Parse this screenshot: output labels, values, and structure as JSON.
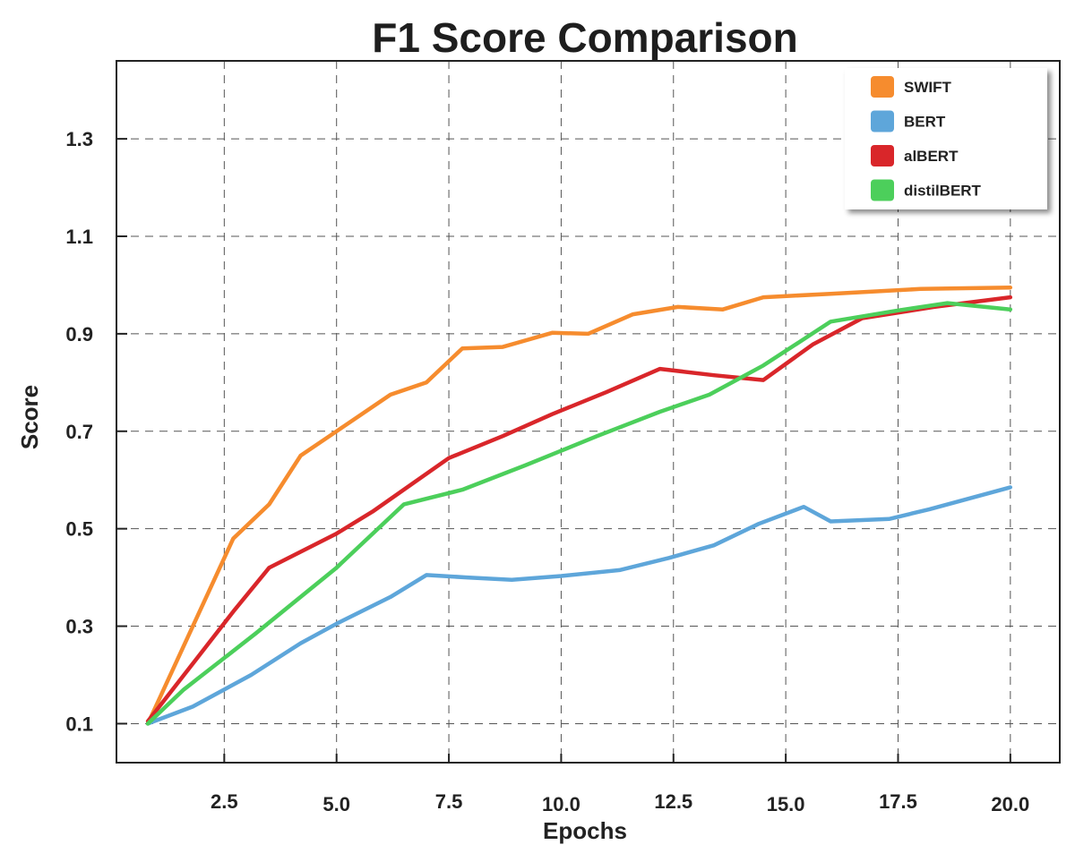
{
  "chart_data": {
    "type": "line",
    "title": "F1 Score Comparison",
    "xlabel": "Epochs",
    "ylabel": "Score",
    "xlim": [
      0.1,
      21.1
    ],
    "ylim": [
      0.02,
      1.46
    ],
    "x_ticks": [
      2.5,
      5.0,
      7.5,
      10.0,
      12.5,
      15.0,
      17.5,
      20.0
    ],
    "x_tick_labels": [
      "2.5",
      "5.0",
      "7.5",
      "10.0",
      "12.5",
      "15.0",
      "17.5",
      "20.0"
    ],
    "y_ticks": [
      0.1,
      0.3,
      0.5,
      0.7,
      0.9,
      1.1,
      1.3
    ],
    "y_tick_labels": [
      "0.1",
      "0.3",
      "0.5",
      "0.7",
      "0.9",
      "1.1",
      "1.3"
    ],
    "grid": true,
    "legend_position": "top-right",
    "series": [
      {
        "name": "SWIFT",
        "color": "#f68c2e",
        "x": [
          0.8,
          2.7,
          3.5,
          4.2,
          5.0,
          6.2,
          7.0,
          7.8,
          8.7,
          9.8,
          10.6,
          11.6,
          12.6,
          13.6,
          14.5,
          16.0,
          17.2,
          18.0,
          20.0
        ],
        "y": [
          0.1,
          0.48,
          0.55,
          0.65,
          0.7,
          0.775,
          0.8,
          0.87,
          0.873,
          0.902,
          0.9,
          0.94,
          0.955,
          0.95,
          0.975,
          0.982,
          0.988,
          0.992,
          0.995
        ]
      },
      {
        "name": "BERT",
        "color": "#5ea6da",
        "x": [
          0.8,
          1.8,
          3.1,
          4.2,
          5.0,
          6.2,
          7.0,
          7.9,
          8.9,
          10.0,
          11.3,
          12.4,
          13.4,
          14.4,
          15.4,
          16.0,
          17.3,
          18.2,
          20.0
        ],
        "y": [
          0.1,
          0.135,
          0.2,
          0.265,
          0.305,
          0.36,
          0.405,
          0.4,
          0.395,
          0.403,
          0.415,
          0.44,
          0.466,
          0.51,
          0.545,
          0.515,
          0.52,
          0.54,
          0.585
        ]
      },
      {
        "name": "alBERT",
        "color": "#d9262a",
        "x": [
          0.8,
          1.9,
          2.7,
          3.5,
          5.0,
          5.8,
          7.5,
          8.7,
          9.8,
          11.0,
          12.2,
          13.4,
          14.5,
          15.6,
          16.7,
          18.3,
          20.0
        ],
        "y": [
          0.105,
          0.235,
          0.33,
          0.42,
          0.49,
          0.535,
          0.645,
          0.69,
          0.735,
          0.78,
          0.828,
          0.815,
          0.805,
          0.878,
          0.932,
          0.955,
          0.975
        ]
      },
      {
        "name": "distilBERT",
        "color": "#4ccf5b",
        "x": [
          0.8,
          1.6,
          3.2,
          5.0,
          6.5,
          7.8,
          9.2,
          10.8,
          12.2,
          13.3,
          14.5,
          16.0,
          17.5,
          18.6,
          20.0
        ],
        "y": [
          0.1,
          0.17,
          0.285,
          0.42,
          0.55,
          0.58,
          0.63,
          0.69,
          0.74,
          0.775,
          0.835,
          0.925,
          0.948,
          0.963,
          0.95
        ]
      }
    ]
  }
}
